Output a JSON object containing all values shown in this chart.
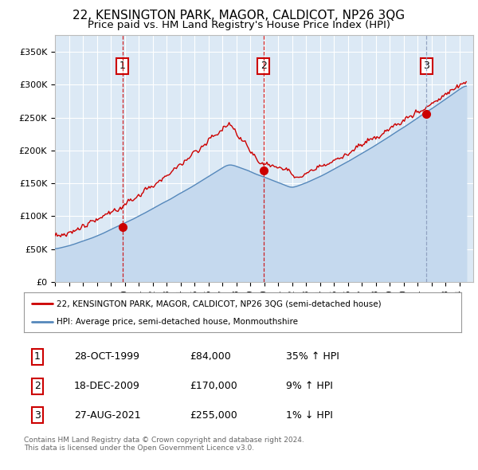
{
  "title": "22, KENSINGTON PARK, MAGOR, CALDICOT, NP26 3QG",
  "subtitle": "Price paid vs. HM Land Registry's House Price Index (HPI)",
  "title_fontsize": 11,
  "subtitle_fontsize": 9.5,
  "bg_color": "#dce9f5",
  "grid_color": "#ffffff",
  "ylim": [
    0,
    375000
  ],
  "yticks": [
    0,
    50000,
    100000,
    150000,
    200000,
    250000,
    300000,
    350000
  ],
  "ytick_labels": [
    "£0",
    "£50K",
    "£100K",
    "£150K",
    "£200K",
    "£250K",
    "£300K",
    "£350K"
  ],
  "price_paid_color": "#cc0000",
  "hpi_color": "#5588bb",
  "hpi_fill_color": "#c5d9ee",
  "sale_marker_color": "#cc0000",
  "legend_label_property": "22, KENSINGTON PARK, MAGOR, CALDICOT, NP26 3QG (semi-detached house)",
  "legend_label_hpi": "HPI: Average price, semi-detached house, Monmouthshire",
  "sales": [
    {
      "date": 1999.83,
      "price": 84000,
      "label": "1",
      "vline_color": "#cc0000",
      "vline_style": "--"
    },
    {
      "date": 2009.96,
      "price": 170000,
      "label": "2",
      "vline_color": "#cc0000",
      "vline_style": "--"
    },
    {
      "date": 2021.65,
      "price": 255000,
      "label": "3",
      "vline_color": "#8899bb",
      "vline_style": "--"
    }
  ],
  "table_rows": [
    {
      "num": "1",
      "date": "28-OCT-1999",
      "price": "£84,000",
      "pct": "35% ↑ HPI"
    },
    {
      "num": "2",
      "date": "18-DEC-2009",
      "price": "£170,000",
      "pct": "9% ↑ HPI"
    },
    {
      "num": "3",
      "date": "27-AUG-2021",
      "price": "£255,000",
      "pct": "1% ↓ HPI"
    }
  ],
  "footer": "Contains HM Land Registry data © Crown copyright and database right 2024.\nThis data is licensed under the Open Government Licence v3.0."
}
